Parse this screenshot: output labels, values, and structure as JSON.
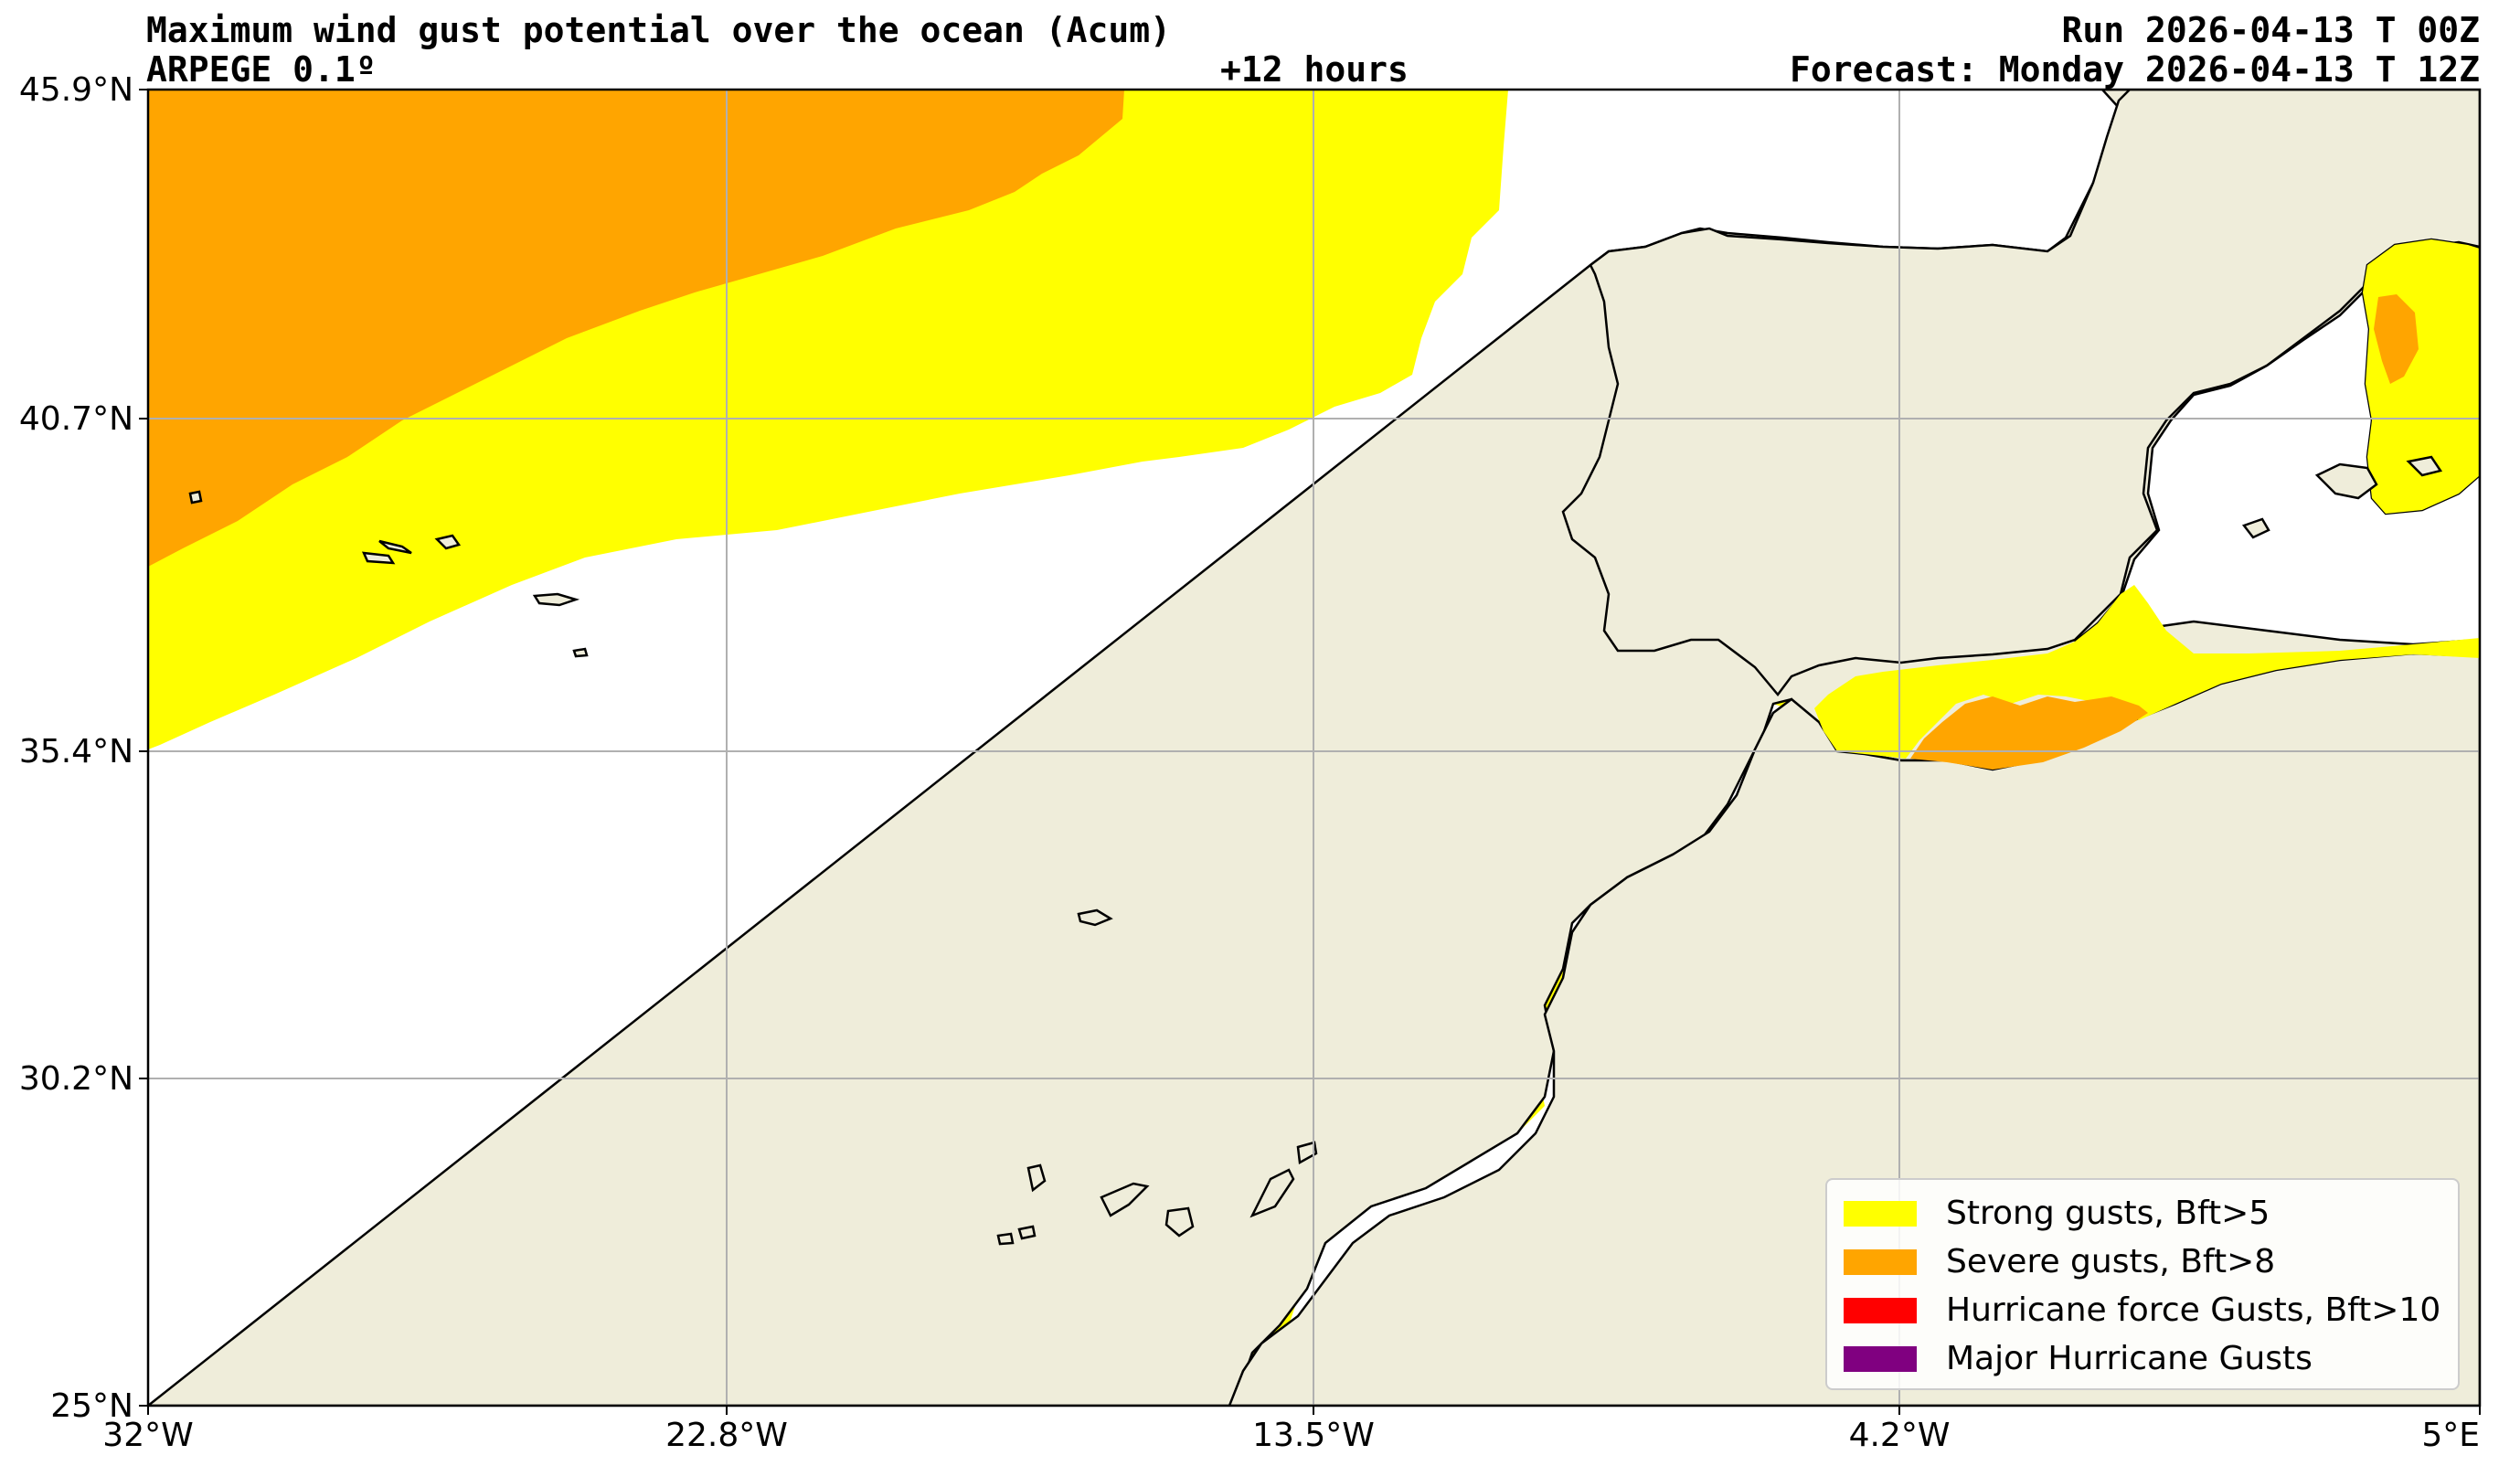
{
  "header": {
    "title": "Maximum wind gust potential over the ocean (Acum)",
    "model": "ARPEGE 0.1º",
    "lead_time": "+12 hours",
    "run": "Run 2026-04-13 T 00Z",
    "forecast": "Forecast: Monday 2026-04-13 T 12Z"
  },
  "axes": {
    "x_ticks": [
      "32°W",
      "22.8°W",
      "13.5°W",
      "4.2°W",
      "5°E"
    ],
    "y_ticks": [
      "45.9°N",
      "40.7°N",
      "35.4°N",
      "30.2°N",
      "25°N"
    ]
  },
  "legend": [
    {
      "label": "Strong gusts, Bft>5",
      "color": "#ffff00"
    },
    {
      "label": "Severe gusts, Bft>8",
      "color": "#ffa500"
    },
    {
      "label": "Hurricane force Gusts, Bft>10",
      "color": "#ff0000"
    },
    {
      "label": "Major Hurricane Gusts",
      "color": "#800080"
    }
  ],
  "colors": {
    "land": "#efedda",
    "ocean": "#ffffff",
    "gridline": "#b0b0b0"
  }
}
